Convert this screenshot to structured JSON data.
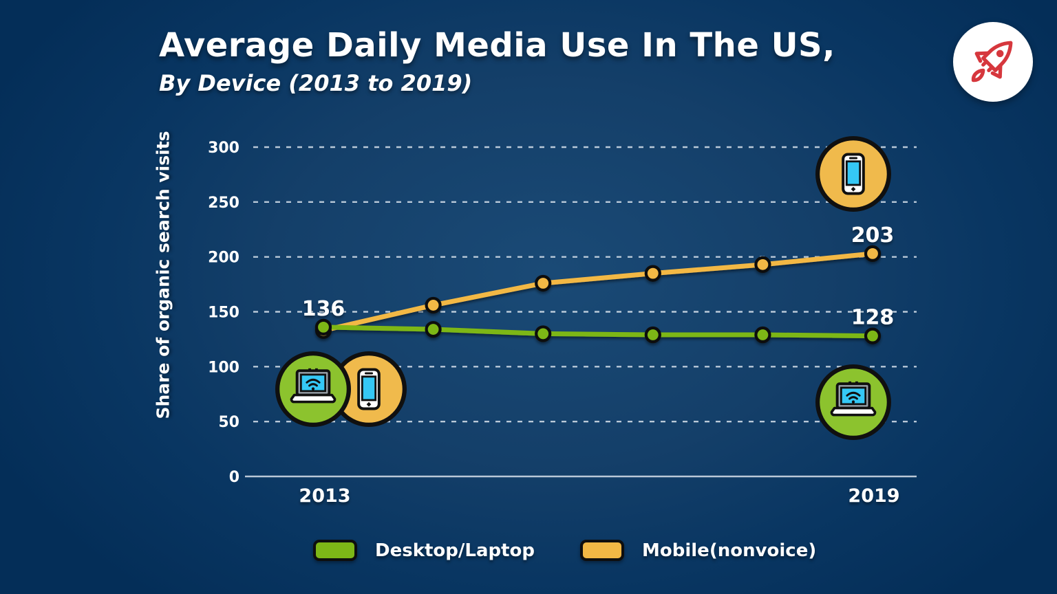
{
  "header": {
    "title": "Average Daily Media Use In The US,",
    "subtitle": "By Device (2013 to 2019)"
  },
  "logo": {
    "icon": "rocket",
    "accent_color": "#d6373d",
    "background_color": "#ffffff"
  },
  "chart_data": {
    "type": "line",
    "title": "Average Daily Media Use In The US, By Device (2013 to 2019)",
    "ylabel": "Share of organic search visits",
    "ylim": [
      0,
      300
    ],
    "yticks": [
      0,
      50,
      100,
      150,
      200,
      250,
      300
    ],
    "grid": "dashed horizontal gridlines, solid baseline at 0",
    "x_point_count": 6,
    "x_tick_labels": [
      {
        "index": 0,
        "label": "2013"
      },
      {
        "index": 5,
        "label": "2019"
      }
    ],
    "series": [
      {
        "name": "Desktop/Laptop",
        "color": "#7db717",
        "values": [
          136,
          134,
          130,
          129,
          129,
          128
        ],
        "point_labels": [
          {
            "index": 0,
            "label": "136"
          },
          {
            "index": 5,
            "label": "128"
          }
        ]
      },
      {
        "name": "Mobile(nonvoice)",
        "color": "#f2b845",
        "values": [
          133,
          156,
          176,
          185,
          193,
          203
        ],
        "point_labels": [
          {
            "index": 5,
            "label": "203"
          }
        ]
      }
    ],
    "legend_position": "bottom"
  },
  "legend": {
    "items": [
      {
        "label": "Desktop/Laptop",
        "color": "#7db717"
      },
      {
        "label": "Mobile(nonvoice)",
        "color": "#f2b845"
      }
    ]
  },
  "icons": {
    "start_desktop_badge": "laptop-wifi-icon",
    "start_mobile_badge": "smartphone-icon",
    "end_mobile_badge": "smartphone-icon",
    "end_desktop_badge": "laptop-wifi-icon",
    "badge_colors": {
      "desktop": "#8cc32e",
      "mobile": "#f0ba4c",
      "screen": "#35c8f5",
      "outline": "#101010"
    }
  },
  "colors": {
    "background_center": "#1a4a76",
    "background_edge": "#042e58",
    "gridline": "#ccd8e4",
    "axis_line": "#bac8d7",
    "text": "#ffffff"
  }
}
